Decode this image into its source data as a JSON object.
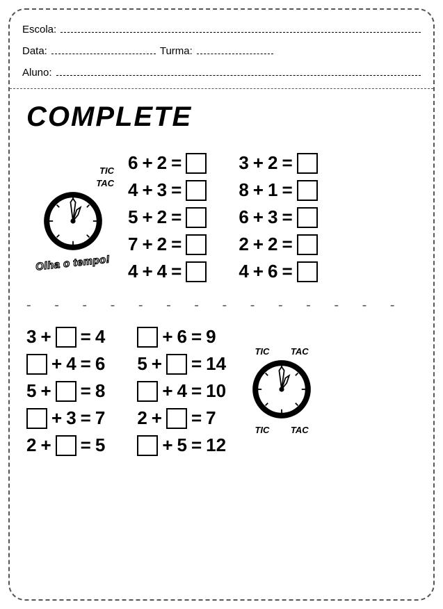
{
  "header": {
    "escola_label": "Escola:",
    "data_label": "Data:",
    "turma_label": "Turma:",
    "aluno_label": "Aluno:"
  },
  "title": "COMPLETE",
  "clock": {
    "tic": "TIC",
    "tac": "TAC",
    "olha": "Olha o tempo!",
    "stroke": "#000000",
    "fill": "#ffffff",
    "ring_width": 8
  },
  "section1": {
    "col1": [
      {
        "a": 6,
        "op": "+",
        "b": 2,
        "eq": "="
      },
      {
        "a": 4,
        "op": "+",
        "b": 3,
        "eq": "="
      },
      {
        "a": 5,
        "op": "+",
        "b": 2,
        "eq": "="
      },
      {
        "a": 7,
        "op": "+",
        "b": 2,
        "eq": "="
      },
      {
        "a": 4,
        "op": "+",
        "b": 4,
        "eq": "="
      }
    ],
    "col2": [
      {
        "a": 3,
        "op": "+",
        "b": 2,
        "eq": "="
      },
      {
        "a": 8,
        "op": "+",
        "b": 1,
        "eq": "="
      },
      {
        "a": 6,
        "op": "+",
        "b": 3,
        "eq": "="
      },
      {
        "a": 2,
        "op": "+",
        "b": 2,
        "eq": "="
      },
      {
        "a": 4,
        "op": "+",
        "b": 6,
        "eq": "="
      }
    ]
  },
  "section2": {
    "col1": [
      {
        "pattern": "A+[]=R",
        "a": 3,
        "op": "+",
        "eq": "=",
        "r": 4
      },
      {
        "pattern": "[]+B=R",
        "op": "+",
        "b": 4,
        "eq": "=",
        "r": 6
      },
      {
        "pattern": "A+[]=R",
        "a": 5,
        "op": "+",
        "eq": "=",
        "r": 8
      },
      {
        "pattern": "[]+B=R",
        "op": "+",
        "b": 3,
        "eq": "=",
        "r": 7
      },
      {
        "pattern": "A+[]=R",
        "a": 2,
        "op": "+",
        "eq": "=",
        "r": 5
      }
    ],
    "col2": [
      {
        "pattern": "[]+B=R",
        "op": "+",
        "b": 6,
        "eq": "=",
        "r": 9
      },
      {
        "pattern": "A+[]=R",
        "a": 5,
        "op": "+",
        "eq": "=",
        "r": 14
      },
      {
        "pattern": "[]+B=R",
        "op": "+",
        "b": 4,
        "eq": "=",
        "r": 10
      },
      {
        "pattern": "A+[]=R",
        "a": 2,
        "op": "+",
        "eq": "=",
        "r": 7
      },
      {
        "pattern": "[]+B=R",
        "op": "+",
        "b": 5,
        "eq": "=",
        "r": 12
      }
    ]
  },
  "colors": {
    "text": "#000000",
    "dash": "#555555",
    "bg": "#ffffff"
  }
}
